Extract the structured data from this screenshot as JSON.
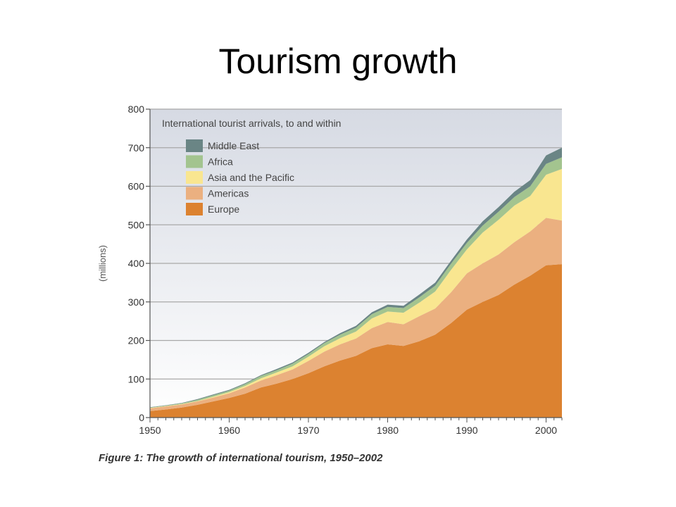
{
  "slide": {
    "title": "Tourism growth",
    "caption": "Figure 1: The growth of international tourism, 1950–2002"
  },
  "chart_data": {
    "type": "area",
    "stacked": true,
    "title": "International tourist arrivals, to and within",
    "xlabel": "",
    "ylabel": "(millions)",
    "xlim": [
      1950,
      2002
    ],
    "ylim": [
      0,
      800
    ],
    "x_ticks": [
      1950,
      1960,
      1970,
      1980,
      1990,
      2000
    ],
    "y_ticks": [
      0,
      100,
      200,
      300,
      400,
      500,
      600,
      700,
      800
    ],
    "grid": true,
    "legend_position": "top-left",
    "x": [
      1950,
      1952,
      1954,
      1956,
      1958,
      1960,
      1962,
      1964,
      1966,
      1968,
      1970,
      1972,
      1974,
      1976,
      1978,
      1980,
      1982,
      1984,
      1986,
      1988,
      1990,
      1992,
      1994,
      1996,
      1998,
      2000,
      2002
    ],
    "series": [
      {
        "name": "Europe",
        "color": "#dc8230",
        "values": [
          17,
          21,
          26,
          33,
          42,
          51,
          62,
          78,
          88,
          100,
          115,
          133,
          148,
          160,
          180,
          190,
          186,
          198,
          215,
          245,
          280,
          300,
          318,
          345,
          368,
          395,
          398
        ]
      },
      {
        "name": "Americas",
        "color": "#ebb080",
        "values": [
          7,
          8,
          8,
          9,
          10,
          12,
          16,
          18,
          22,
          25,
          32,
          38,
          42,
          45,
          52,
          58,
          56,
          65,
          68,
          80,
          94,
          100,
          105,
          110,
          115,
          123,
          113
        ]
      },
      {
        "name": "Asia and the Pacific",
        "color": "#f9e690",
        "values": [
          1,
          1,
          1,
          1,
          2,
          3,
          4,
          6,
          7,
          8,
          11,
          14,
          16,
          18,
          25,
          27,
          30,
          35,
          44,
          58,
          62,
          80,
          90,
          95,
          92,
          112,
          134
        ]
      },
      {
        "name": "Africa",
        "color": "#a3c48f",
        "values": [
          1,
          1,
          2,
          3,
          4,
          4,
          5,
          6,
          6,
          7,
          7,
          8,
          9,
          10,
          11,
          12,
          12,
          14,
          15,
          16,
          17,
          18,
          21,
          22,
          25,
          28,
          30
        ]
      },
      {
        "name": "Middle East",
        "color": "#6a8585",
        "values": [
          1,
          1,
          1,
          2,
          2,
          2,
          2,
          2,
          3,
          3,
          3,
          3,
          4,
          5,
          5,
          6,
          6,
          7,
          8,
          8,
          9,
          11,
          12,
          14,
          16,
          22,
          25
        ]
      }
    ]
  }
}
